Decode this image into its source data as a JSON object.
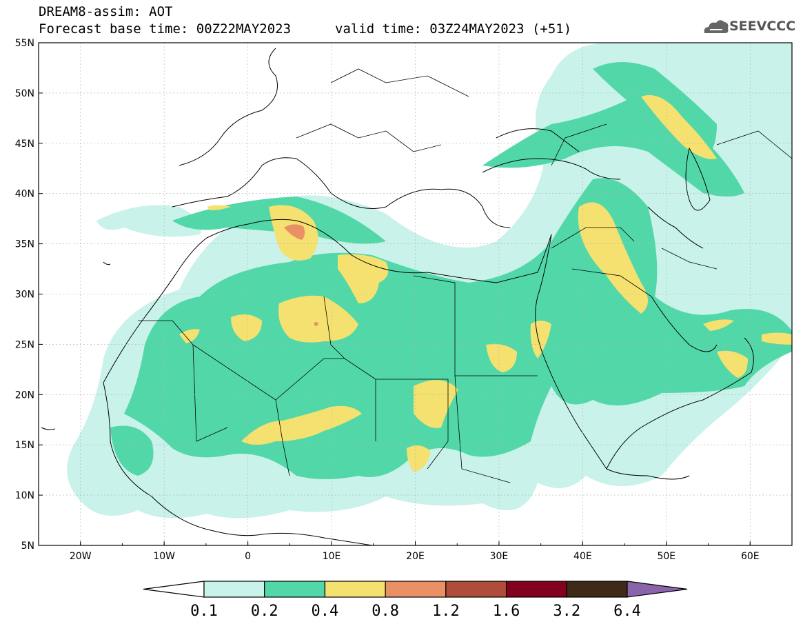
{
  "header": {
    "title": "DREAM8-assim: AOT",
    "base_time": "Forecast base time: 00Z22MAY2023",
    "valid_time": "valid time: 03Z24MAY2023 (+51)"
  },
  "logo": {
    "text": "SEEVCCC",
    "icon": "cloud-icon"
  },
  "map": {
    "lon_range": [
      -25,
      65
    ],
    "lat_range": [
      5,
      55
    ],
    "lon_ticks": [
      "20W",
      "10W",
      "0",
      "10E",
      "20E",
      "30E",
      "40E",
      "50E",
      "60E"
    ],
    "lat_ticks": [
      "55N",
      "50N",
      "45N",
      "40N",
      "35N",
      "30N",
      "25N",
      "20N",
      "15N",
      "10N",
      "5N"
    ]
  },
  "colorbar": {
    "labels": [
      "0.1",
      "0.2",
      "0.4",
      "0.8",
      "1.2",
      "1.6",
      "3.2",
      "6.4"
    ],
    "colors": [
      "#ffffff",
      "#c8f2ea",
      "#52d8a8",
      "#f5e170",
      "#ea9065",
      "#b04c3a",
      "#84001f",
      "#3f2a18",
      "#8a64a8"
    ]
  }
}
